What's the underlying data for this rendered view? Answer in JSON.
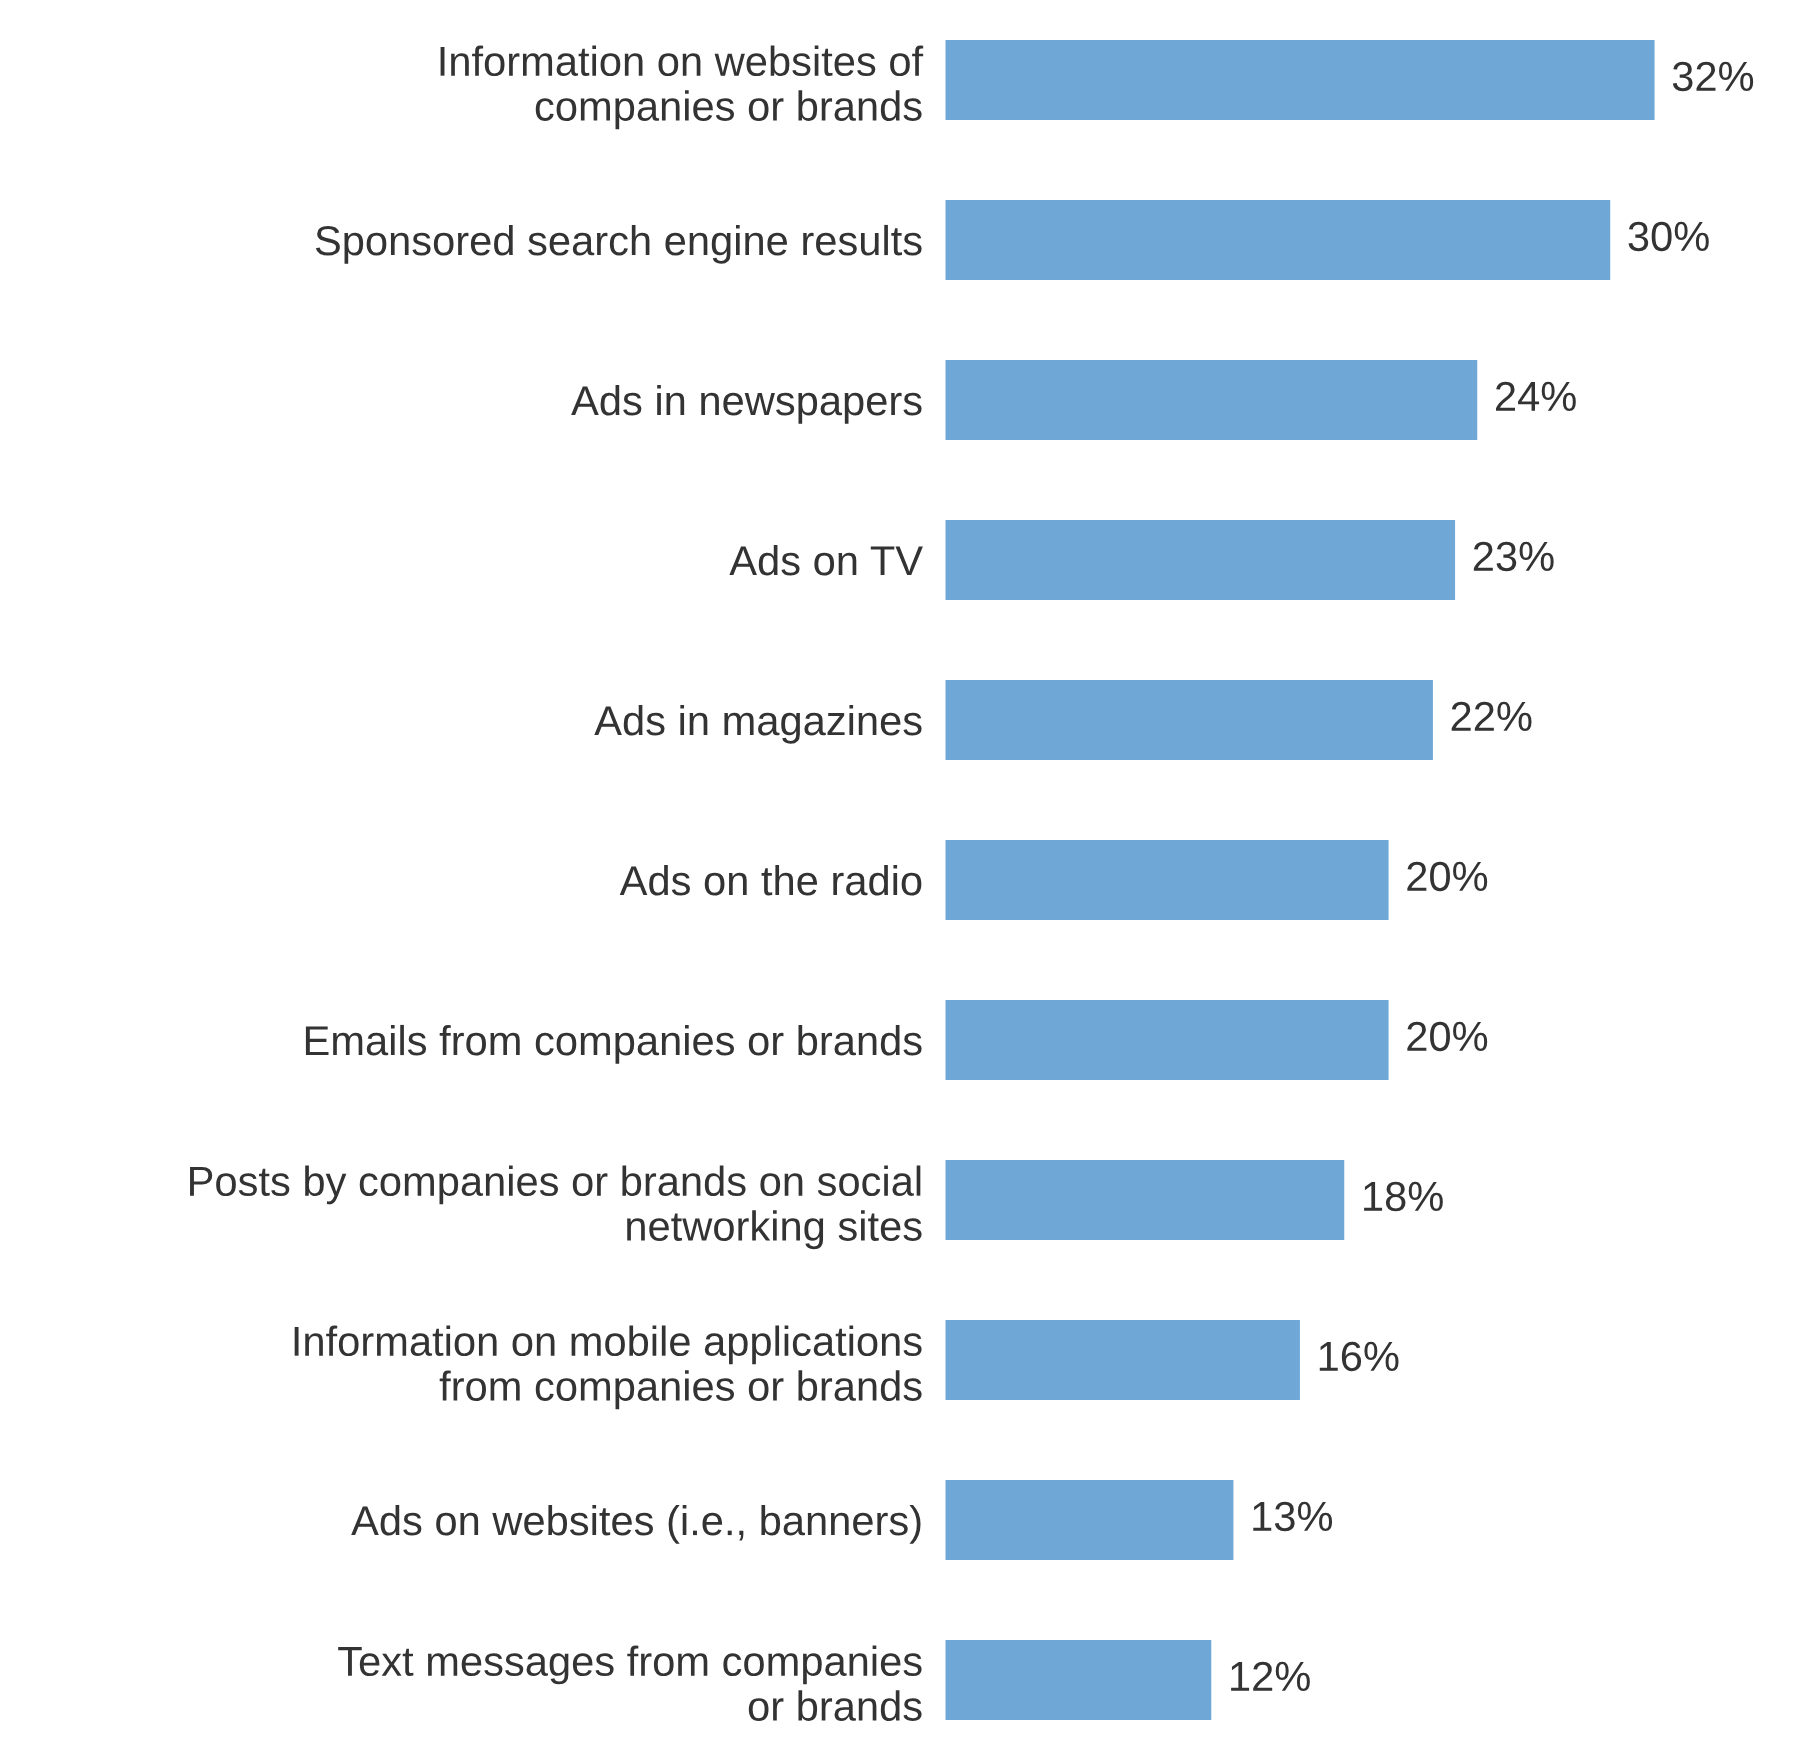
{
  "chart_data": {
    "type": "bar",
    "orientation": "horizontal",
    "color": "#6fa8d6",
    "categories": [
      "Information on websites of\ncompanies or brands",
      "Sponsored search engine results",
      "Ads in newspapers",
      "Ads on TV",
      "Ads in magazines",
      "Ads on the radio",
      "Emails from companies or brands",
      "Posts by companies or brands on social\nnetworking sites",
      "Information on mobile applications\nfrom companies or brands",
      "Ads on websites (i.e., banners)",
      "Text messages from companies\nor brands"
    ],
    "values": [
      32,
      30,
      24,
      23,
      22,
      20,
      20,
      18,
      16,
      13,
      12
    ],
    "value_labels": [
      "32%",
      "30%",
      "24%",
      "23%",
      "22%",
      "20%",
      "20%",
      "18%",
      "16%",
      "13%",
      "12%"
    ]
  }
}
